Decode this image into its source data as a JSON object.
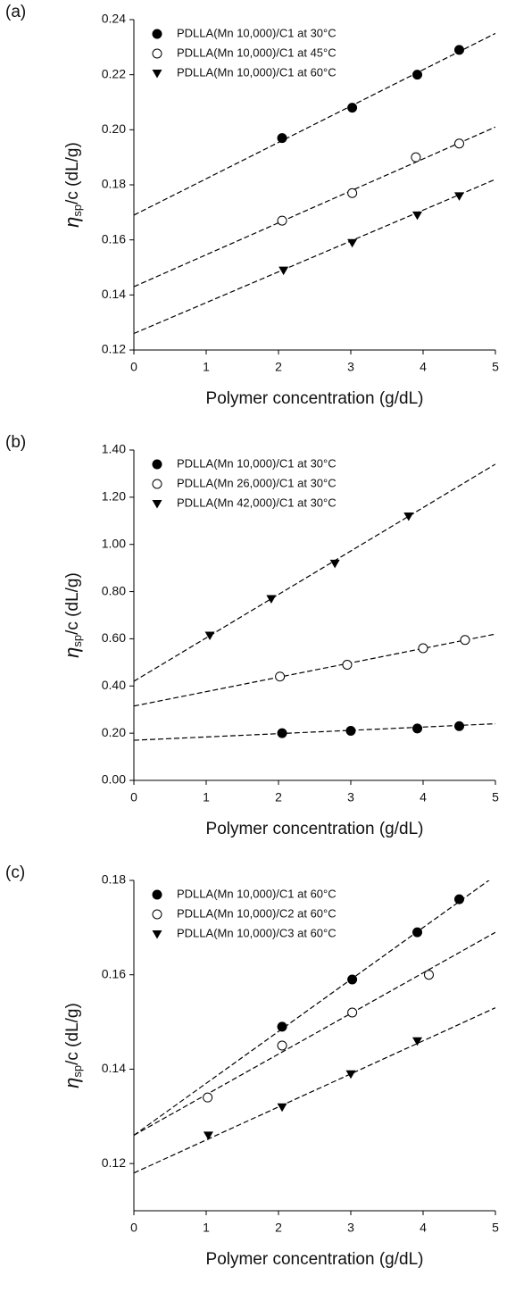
{
  "chart_data": [
    {
      "type": "scatter",
      "panel": "(a)",
      "xlabel": "Polymer concentration (g/dL)",
      "ylabel": {
        "symbol": "η",
        "subscript": "sp",
        "text": "/c (dL/g)"
      },
      "xlim": [
        0,
        5
      ],
      "xticks": [
        0,
        1,
        2,
        3,
        4,
        5
      ],
      "ylim": [
        0.12,
        0.24
      ],
      "yticks": [
        0.12,
        0.14,
        0.16,
        0.18,
        {
          "value": 0.2,
          "label": "0.20"
        },
        0.22,
        0.24
      ],
      "series": [
        {
          "name": "PDLLA(Mn 10,000)/C1 at 30°C",
          "marker": "circle-filled",
          "color": "#000000",
          "x": [
            2.05,
            3.02,
            3.92,
            4.5
          ],
          "values": [
            0.197,
            0.208,
            0.22,
            0.229
          ],
          "fit": [
            0.169,
            0.235
          ]
        },
        {
          "name": "PDLLA(Mn 10,000)/C1 at 45°C",
          "marker": "circle-open",
          "color": "#000000",
          "x": [
            2.05,
            3.02,
            3.9,
            4.5
          ],
          "values": [
            0.167,
            0.177,
            0.19,
            0.195
          ],
          "fit": [
            0.143,
            0.201
          ]
        },
        {
          "name": "PDLLA(Mn 10,000)/C1 at 60°C",
          "marker": "triangle-down",
          "color": "#000000",
          "x": [
            2.07,
            3.02,
            3.92,
            4.5
          ],
          "values": [
            0.149,
            0.159,
            0.169,
            0.176
          ],
          "fit": [
            0.126,
            0.182
          ]
        }
      ]
    },
    {
      "type": "scatter",
      "panel": "(b)",
      "xlabel": "Polymer concentration (g/dL)",
      "ylabel": {
        "symbol": "η",
        "subscript": "sp",
        "text": "/c (dL/g)"
      },
      "xlim": [
        0,
        5
      ],
      "xticks": [
        0,
        1,
        2,
        3,
        4,
        5
      ],
      "ylim": [
        0,
        1.4
      ],
      "yticks": [
        {
          "value": 0,
          "label": "0.00"
        },
        {
          "value": 0.2,
          "label": "0.20"
        },
        {
          "value": 0.4,
          "label": "0.40"
        },
        {
          "value": 0.6,
          "label": "0.60"
        },
        {
          "value": 0.8,
          "label": "0.80"
        },
        {
          "value": 1,
          "label": "1.00"
        },
        {
          "value": 1.2,
          "label": "1.20"
        },
        {
          "value": 1.4,
          "label": "1.40"
        }
      ],
      "series": [
        {
          "name": "PDLLA(Mn 10,000)/C1 at 30°C",
          "marker": "circle-filled",
          "color": "#000000",
          "x": [
            2.05,
            3.0,
            3.92,
            4.5
          ],
          "values": [
            0.2,
            0.21,
            0.22,
            0.23
          ],
          "fit": [
            0.17,
            0.24
          ]
        },
        {
          "name": "PDLLA(Mn 26,000)/C1 at 30°C",
          "marker": "circle-open",
          "color": "#000000",
          "x": [
            2.02,
            2.95,
            4.0,
            4.58
          ],
          "values": [
            0.44,
            0.49,
            0.56,
            0.595
          ],
          "fit": [
            0.315,
            0.62
          ]
        },
        {
          "name": "PDLLA(Mn 42,000)/C1 at 30°C",
          "marker": "triangle-down",
          "color": "#000000",
          "x": [
            1.05,
            1.9,
            2.78,
            3.8
          ],
          "values": [
            0.615,
            0.77,
            0.92,
            1.12
          ],
          "fit": [
            0.42,
            1.34
          ]
        }
      ]
    },
    {
      "type": "scatter",
      "panel": "(c)",
      "xlabel": "Polymer concentration (g/dL)",
      "ylabel": {
        "symbol": "η",
        "subscript": "sp",
        "text": "/c (dL/g)"
      },
      "xlim": [
        0,
        5
      ],
      "xticks": [
        0,
        1,
        2,
        3,
        4,
        5
      ],
      "ylim": [
        0.11,
        0.18
      ],
      "yticks": [
        0.12,
        0.14,
        0.16,
        0.18
      ],
      "series": [
        {
          "name": "PDLLA(Mn 10,000)/C1 at 60°C",
          "marker": "circle-filled",
          "color": "#000000",
          "x": [
            2.05,
            3.02,
            3.92,
            4.5
          ],
          "values": [
            0.149,
            0.159,
            0.169,
            0.176
          ],
          "fit": [
            0.126,
            0.181
          ]
        },
        {
          "name": "PDLLA(Mn 10,000)/C2 at 60°C",
          "marker": "circle-open",
          "color": "#000000",
          "x": [
            1.02,
            2.05,
            3.02,
            4.08
          ],
          "values": [
            0.134,
            0.145,
            0.152,
            0.16
          ],
          "fit": [
            0.126,
            0.169
          ]
        },
        {
          "name": "PDLLA(Mn 10,000)/C3 at 60°C",
          "marker": "triangle-down",
          "color": "#000000",
          "x": [
            1.03,
            2.05,
            3.0,
            3.92
          ],
          "values": [
            0.126,
            0.132,
            0.139,
            0.146
          ],
          "fit": [
            0.118,
            0.153
          ]
        }
      ]
    }
  ]
}
